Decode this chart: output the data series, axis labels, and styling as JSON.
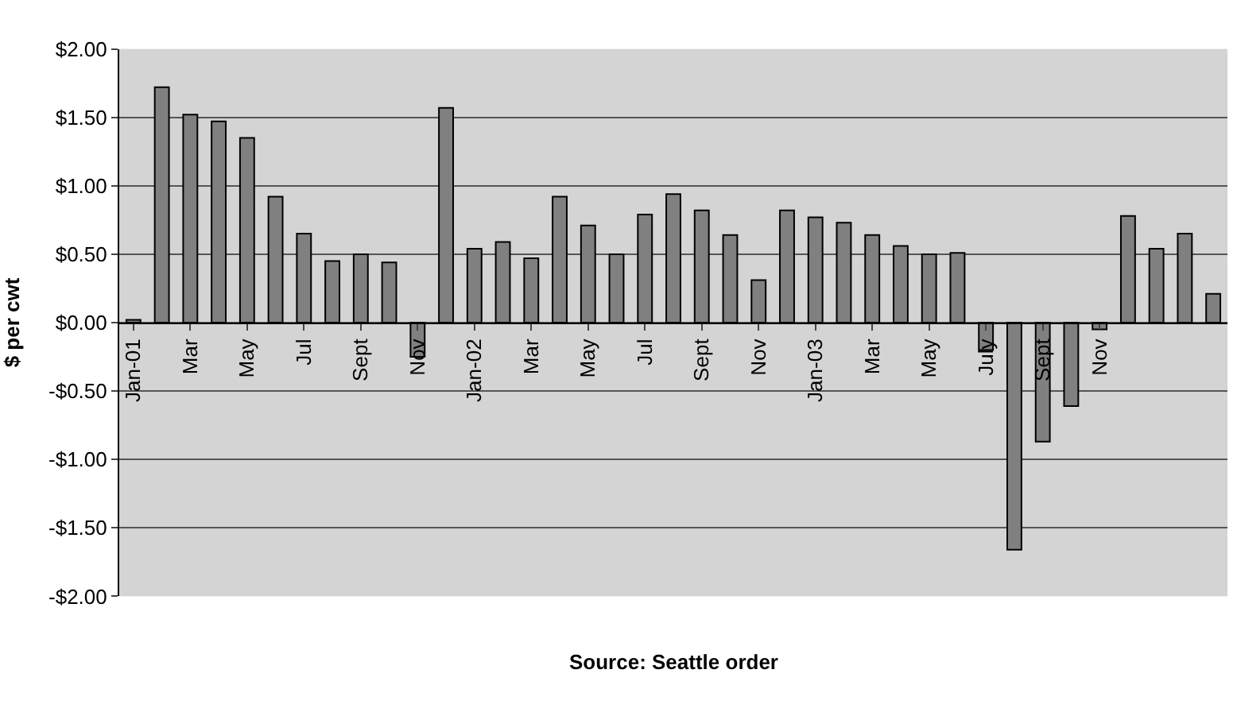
{
  "chart_data": {
    "type": "bar",
    "ylabel": "$ per cwt",
    "annotations": [
      "Source: Seattle order"
    ],
    "categories": [
      "Jan-01",
      null,
      "Mar",
      null,
      "May",
      null,
      "Jul",
      null,
      "Sept",
      null,
      "Nov",
      null,
      "Jan-02",
      null,
      "Mar",
      null,
      "May",
      null,
      "Jul",
      null,
      "Sept",
      null,
      "Nov",
      null,
      "Jan-03",
      null,
      "Mar",
      null,
      "May",
      null,
      "July",
      null,
      "Sept",
      null,
      "Nov",
      null,
      null,
      null,
      null
    ],
    "values": [
      0.02,
      1.72,
      1.52,
      1.47,
      1.35,
      0.92,
      0.65,
      0.45,
      0.5,
      0.44,
      -0.25,
      1.57,
      0.54,
      0.59,
      0.47,
      0.92,
      0.71,
      0.5,
      0.79,
      0.94,
      0.82,
      0.64,
      0.31,
      0.82,
      0.77,
      0.73,
      0.64,
      0.56,
      0.5,
      0.51,
      -0.2,
      -1.66,
      -0.87,
      -0.61,
      -0.05,
      0.78,
      0.54,
      0.65,
      0.21
    ],
    "color": "#808080",
    "ylim": [
      -2,
      2
    ],
    "yticks": [
      {
        "value": 2,
        "label": "$2.00"
      },
      {
        "value": 1.5,
        "label": "$1.50"
      },
      {
        "value": 1,
        "label": "$1.00"
      },
      {
        "value": 0.5,
        "label": "$0.50"
      },
      {
        "value": 0,
        "label": "$0.00"
      },
      {
        "value": -0.5,
        "label": "-$0.50"
      },
      {
        "value": -1,
        "label": "-$1.00"
      },
      {
        "value": -1.5,
        "label": "-$1.50"
      },
      {
        "value": -2,
        "label": "-$2.00"
      }
    ],
    "grid": "y",
    "legend": false
  }
}
